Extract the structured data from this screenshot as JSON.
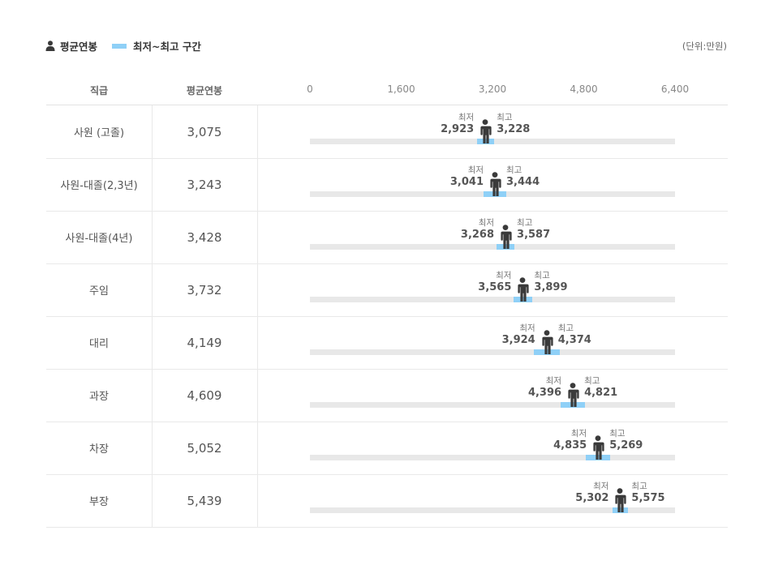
{
  "legend": {
    "avg_label": "평균연봉",
    "range_label": "최저~최고 구간"
  },
  "unit": "(단위:만원)",
  "columns": {
    "rank": "직급",
    "avg": "평균연봉"
  },
  "colors": {
    "range": "#8fd0f7",
    "track": "#e8e8e8",
    "person": "#3a3a3a"
  },
  "chart_data": {
    "type": "range",
    "axis_ticks": [
      "0",
      "1,600",
      "3,200",
      "4,800",
      "6,400"
    ],
    "xlim": [
      0,
      6400
    ],
    "min_caption": "최저",
    "max_caption": "최고",
    "rows": [
      {
        "rank": "사원 (고졸)",
        "avg": 3075,
        "avg_label": "3,075",
        "min": 2923,
        "min_label": "2,923",
        "max": 3228,
        "max_label": "3,228"
      },
      {
        "rank": "사원-대졸(2,3년)",
        "avg": 3243,
        "avg_label": "3,243",
        "min": 3041,
        "min_label": "3,041",
        "max": 3444,
        "max_label": "3,444"
      },
      {
        "rank": "사원-대졸(4년)",
        "avg": 3428,
        "avg_label": "3,428",
        "min": 3268,
        "min_label": "3,268",
        "max": 3587,
        "max_label": "3,587"
      },
      {
        "rank": "주임",
        "avg": 3732,
        "avg_label": "3,732",
        "min": 3565,
        "min_label": "3,565",
        "max": 3899,
        "max_label": "3,899"
      },
      {
        "rank": "대리",
        "avg": 4149,
        "avg_label": "4,149",
        "min": 3924,
        "min_label": "3,924",
        "max": 4374,
        "max_label": "4,374"
      },
      {
        "rank": "과장",
        "avg": 4609,
        "avg_label": "4,609",
        "min": 4396,
        "min_label": "4,396",
        "max": 4821,
        "max_label": "4,821"
      },
      {
        "rank": "차장",
        "avg": 5052,
        "avg_label": "5,052",
        "min": 4835,
        "min_label": "4,835",
        "max": 5269,
        "max_label": "5,269"
      },
      {
        "rank": "부장",
        "avg": 5439,
        "avg_label": "5,439",
        "min": 5302,
        "min_label": "5,302",
        "max": 5575,
        "max_label": "5,575"
      }
    ]
  }
}
